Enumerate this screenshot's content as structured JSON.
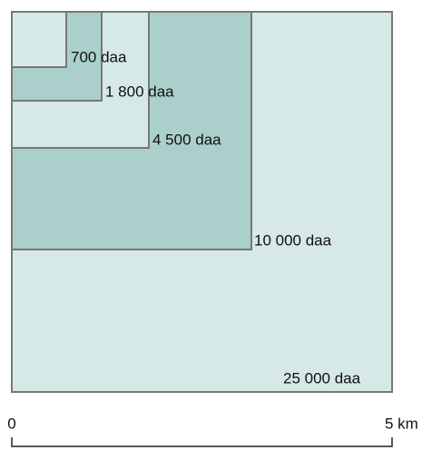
{
  "areas": [
    "700 daa",
    "1 800 daa",
    "4 500 daa",
    "10 000 daa",
    "25 000 daa"
  ],
  "scale": {
    "start": "0",
    "end": "5 km"
  }
}
